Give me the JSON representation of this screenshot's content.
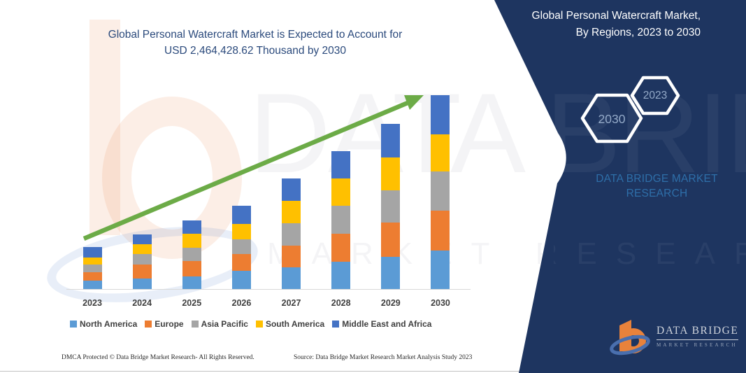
{
  "title": {
    "line1": "Global Personal Watercraft Market is Expected to Account for",
    "line2": "USD 2,464,428.62 Thousand by 2030"
  },
  "panel": {
    "heading": "Global Personal Watercraft Market, By Regions, 2023 to 2030",
    "hexagons": [
      {
        "label": "2030"
      },
      {
        "label": "2023"
      }
    ],
    "brand": {
      "line1": "DATA BRIDGE MARKET",
      "line2": "RESEARCH"
    },
    "logo": {
      "name": "DATA BRIDGE",
      "tagline": "MARKET RESEARCH"
    }
  },
  "watermark": {
    "big": "DATA BRIDGE",
    "sub": "MARKET RESEARCH"
  },
  "chart_data": {
    "type": "bar",
    "stacked": true,
    "title": "Global Personal Watercraft Market is Expected to Account for USD 2,464,428.62 Thousand by 2030",
    "categories": [
      "2023",
      "2024",
      "2025",
      "2026",
      "2027",
      "2028",
      "2029",
      "2030"
    ],
    "series": [
      {
        "name": "North America",
        "color": "#5B9BD5",
        "values": [
          12,
          15,
          18,
          26,
          31,
          39,
          46,
          55
        ]
      },
      {
        "name": "Europe",
        "color": "#ED7D31",
        "values": [
          12,
          20,
          22,
          24,
          31,
          40,
          49,
          57
        ]
      },
      {
        "name": "Asia Pacific",
        "color": "#A5A5A5",
        "values": [
          11,
          15,
          19,
          21,
          32,
          40,
          46,
          56
        ]
      },
      {
        "name": "South America",
        "color": "#FFC000",
        "values": [
          10,
          14,
          20,
          22,
          32,
          39,
          47,
          53
        ]
      },
      {
        "name": "Middle East and Africa",
        "color": "#4472C4",
        "values": [
          15,
          14,
          19,
          26,
          32,
          39,
          48,
          56
        ]
      }
    ],
    "totals_relative": [
      60,
      78,
      98,
      119,
      158,
      197,
      236,
      277
    ],
    "values_unit": "relative bar height in screen px (chart shows no y-axis scale)",
    "known_point": {
      "year": "2030",
      "total": "USD 2,464,428.62 Thousand"
    },
    "xlabel": "",
    "ylabel": "",
    "axes": {
      "y_axis_labels": false,
      "gridlines": false
    },
    "legend_position": "bottom",
    "trend_arrow": true
  },
  "footer": {
    "dmca": "DMCA Protected © Data Bridge Market Research-  All Rights Reserved.",
    "source": "Source: Data Bridge Market Research  Market Analysis Study 2023"
  },
  "colors": {
    "panel_navy": "#1e3560",
    "title_text": "#2b4a7c",
    "heading_text": "#ffffff",
    "hexagon_border": "#ffffff",
    "hexagon_text": "#94aac8",
    "brand_text": "#2e6fa9",
    "axis_label_text": "#3f3f3f",
    "legend_text": "#3f3f3f",
    "footer_text": "#262626",
    "arrow_green": "#6cab47",
    "axis_line": "#d9d9d9",
    "bottom_rule": "#c2c2c2",
    "logo_orange": "#e8823b",
    "logo_swoosh": "#4a6fae",
    "logo_text": "#ced3db",
    "logo_tagline": "#9aa7bb",
    "watermark_pink": "rgba(232,124,60,0.13)",
    "watermark_blue": "rgba(68,114,196,0.12)",
    "watermark_gray": "rgba(110,110,135,0.08)",
    "watermark_light": "rgba(255,255,255,0.05)"
  }
}
